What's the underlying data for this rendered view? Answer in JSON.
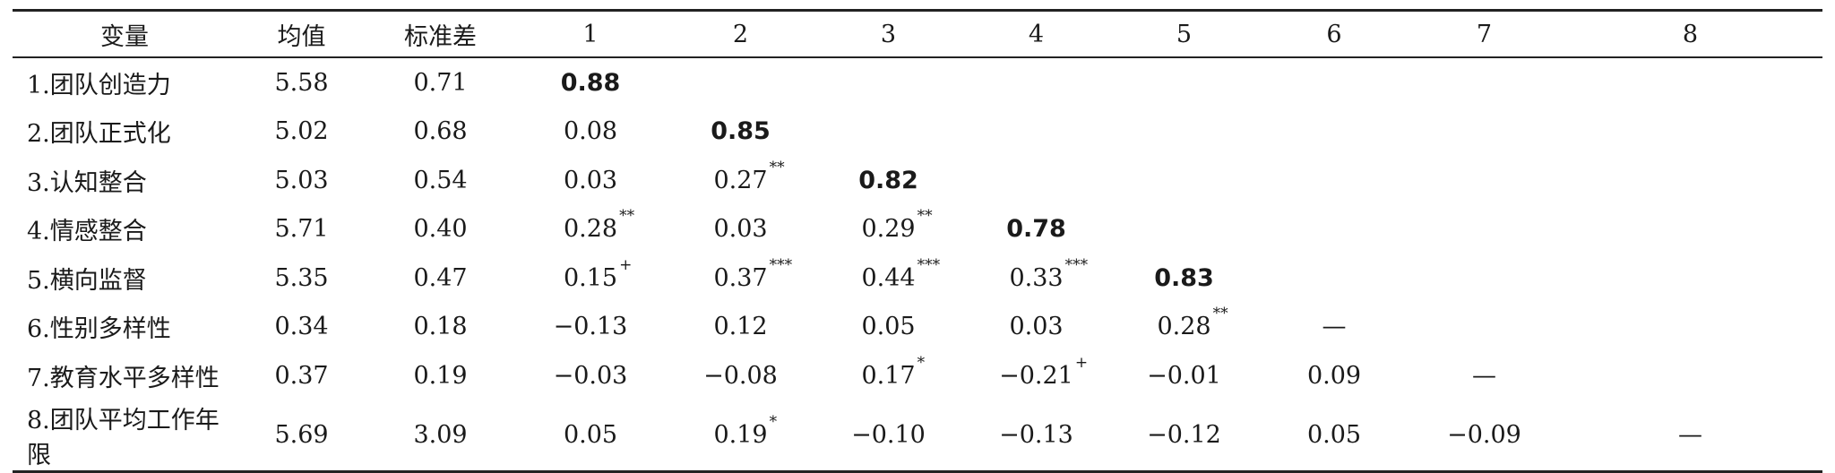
{
  "headers": [
    "变量",
    "均值",
    "标准差",
    "1",
    "2",
    "3",
    "4",
    "5",
    "6",
    "7",
    "8"
  ],
  "rows": [
    {
      "label": "1.团队创造力",
      "mean": "5.58",
      "sd": "0.71",
      "cells": [
        {
          "v": "0.88",
          "bold": true
        }
      ]
    },
    {
      "label": "2.团队正式化",
      "mean": "5.02",
      "sd": "0.68",
      "cells": [
        {
          "v": "0.08"
        },
        {
          "v": "0.85",
          "bold": true
        }
      ]
    },
    {
      "label": "3.认知整合",
      "mean": "5.03",
      "sd": "0.54",
      "cells": [
        {
          "v": "0.03"
        },
        {
          "v": "0.27",
          "sup": "**"
        },
        {
          "v": "0.82",
          "bold": true
        }
      ]
    },
    {
      "label": "4.情感整合",
      "mean": "5.71",
      "sd": "0.40",
      "cells": [
        {
          "v": "0.28",
          "sup": "**"
        },
        {
          "v": "0.03"
        },
        {
          "v": "0.29",
          "sup": "**"
        },
        {
          "v": "0.78",
          "bold": true
        }
      ]
    },
    {
      "label": "5.横向监督",
      "mean": "5.35",
      "sd": "0.47",
      "cells": [
        {
          "v": "0.15",
          "sup": "+"
        },
        {
          "v": "0.37",
          "sup": "***"
        },
        {
          "v": "0.44",
          "sup": "***"
        },
        {
          "v": "0.33",
          "sup": "***"
        },
        {
          "v": "0.83",
          "bold": true
        }
      ]
    },
    {
      "label": "6.性别多样性",
      "mean": "0.34",
      "sd": "0.18",
      "cells": [
        {
          "v": "−0.13"
        },
        {
          "v": "0.12"
        },
        {
          "v": "0.05"
        },
        {
          "v": "0.03"
        },
        {
          "v": "0.28",
          "sup": "**"
        },
        {
          "v": "—"
        }
      ]
    },
    {
      "label": "7.教育水平多样性",
      "mean": "0.37",
      "sd": "0.19",
      "cells": [
        {
          "v": "−0.03"
        },
        {
          "v": "−0.08"
        },
        {
          "v": "0.17",
          "sup": "*"
        },
        {
          "v": "−0.21",
          "sup": "+"
        },
        {
          "v": "−0.01"
        },
        {
          "v": "0.09"
        },
        {
          "v": "—"
        }
      ]
    },
    {
      "label": "8.团队平均工作年限",
      "mean": "5.69",
      "sd": "3.09",
      "cells": [
        {
          "v": "0.05"
        },
        {
          "v": "0.19",
          "sup": "*"
        },
        {
          "v": "−0.10"
        },
        {
          "v": "−0.13"
        },
        {
          "v": "−0.12"
        },
        {
          "v": "0.05"
        },
        {
          "v": "−0.09"
        },
        {
          "v": "—"
        }
      ]
    }
  ]
}
